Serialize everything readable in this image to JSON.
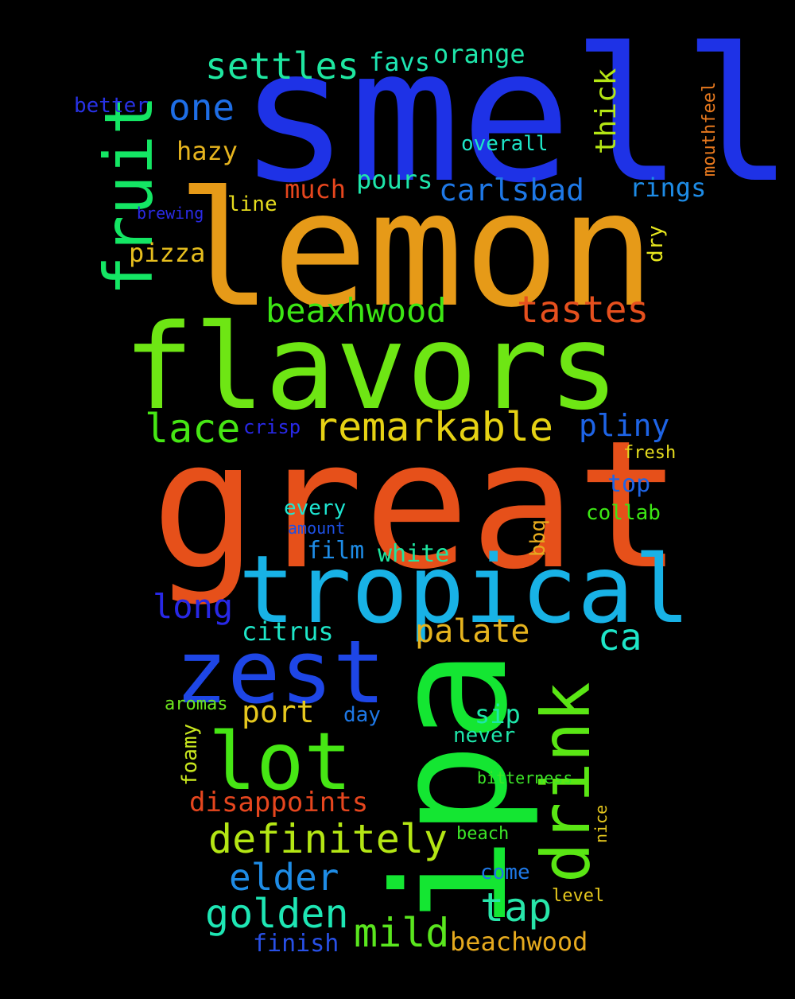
{
  "words": [
    {
      "text": "smell",
      "color": "#1e32e6"
    },
    {
      "text": "lemon",
      "color": "#e69a18"
    },
    {
      "text": "flavors",
      "color": "#6ee614"
    },
    {
      "text": "great",
      "color": "#e6501a"
    },
    {
      "text": "ipa",
      "color": "#14e632"
    },
    {
      "text": "tropical",
      "color": "#18b2e6"
    },
    {
      "text": "zest",
      "color": "#1e46e6"
    },
    {
      "text": "lot",
      "color": "#46e614"
    },
    {
      "text": "drink",
      "color": "#5ae614"
    },
    {
      "text": "fruit",
      "color": "#14e664"
    },
    {
      "text": "remarkable",
      "color": "#e6d214"
    },
    {
      "text": "definitely",
      "color": "#b4e614"
    },
    {
      "text": "golden",
      "color": "#1ee6b4"
    },
    {
      "text": "tastes",
      "color": "#e6501e"
    },
    {
      "text": "beaxhwood",
      "color": "#3ce614"
    },
    {
      "text": "lace",
      "color": "#46e614"
    },
    {
      "text": "settles",
      "color": "#1ee6a0"
    },
    {
      "text": "elder",
      "color": "#1e8ce6"
    },
    {
      "text": "mild",
      "color": "#5ae61e"
    },
    {
      "text": "tap",
      "color": "#28e6aa"
    },
    {
      "text": "one",
      "color": "#1e6ee6"
    },
    {
      "text": "pliny",
      "color": "#1e64e6"
    },
    {
      "text": "carlsbad",
      "color": "#1e78e6"
    },
    {
      "text": "palate",
      "color": "#e6b41e"
    },
    {
      "text": "long",
      "color": "#2828e6"
    },
    {
      "text": "ca",
      "color": "#1ee6c8"
    },
    {
      "text": "beachwood",
      "color": "#e6aa1e"
    },
    {
      "text": "disappoints",
      "color": "#e6461e"
    },
    {
      "text": "port",
      "color": "#e6c81e"
    },
    {
      "text": "citrus",
      "color": "#1ee6c8"
    },
    {
      "text": "orange",
      "color": "#1ee6aa"
    },
    {
      "text": "favs",
      "color": "#1ee6b4"
    },
    {
      "text": "thick",
      "color": "#b4e614"
    },
    {
      "text": "hazy",
      "color": "#e6b41e"
    },
    {
      "text": "pours",
      "color": "#1ee6aa"
    },
    {
      "text": "much",
      "color": "#e6461e"
    },
    {
      "text": "rings",
      "color": "#1e8ce6"
    },
    {
      "text": "pizza",
      "color": "#e6be1e"
    },
    {
      "text": "finish",
      "color": "#2850e6"
    },
    {
      "text": "white",
      "color": "#1ee6a0"
    },
    {
      "text": "film",
      "color": "#1e8ce6"
    },
    {
      "text": "top",
      "color": "#1e64e6"
    },
    {
      "text": "collab",
      "color": "#3ce614"
    },
    {
      "text": "sip",
      "color": "#1ee6aa"
    },
    {
      "text": "every",
      "color": "#1ee6d2"
    },
    {
      "text": "overall",
      "color": "#1ee6c8"
    },
    {
      "text": "better",
      "color": "#2832e6"
    },
    {
      "text": "line",
      "color": "#e6dc1e"
    },
    {
      "text": "brewing",
      "color": "#2a2ae6"
    },
    {
      "text": "crisp",
      "color": "#2828e6"
    },
    {
      "text": "fresh",
      "color": "#e6dc1e"
    },
    {
      "text": "amount",
      "color": "#1e50e6"
    },
    {
      "text": "bbq",
      "color": "#e6aa1e"
    },
    {
      "text": "dry",
      "color": "#e6e61e"
    },
    {
      "text": "mouthfeel",
      "color": "#e6781e"
    },
    {
      "text": "aromas",
      "color": "#6ee61e"
    },
    {
      "text": "foamy",
      "color": "#c8e61e"
    },
    {
      "text": "day",
      "color": "#1e78e6"
    },
    {
      "text": "never",
      "color": "#1ee6aa"
    },
    {
      "text": "bitterness",
      "color": "#3ce628"
    },
    {
      "text": "beach",
      "color": "#3ce628"
    },
    {
      "text": "nice",
      "color": "#e6c81e"
    },
    {
      "text": "come",
      "color": "#1e78e6"
    },
    {
      "text": "level",
      "color": "#e6c81e"
    }
  ]
}
